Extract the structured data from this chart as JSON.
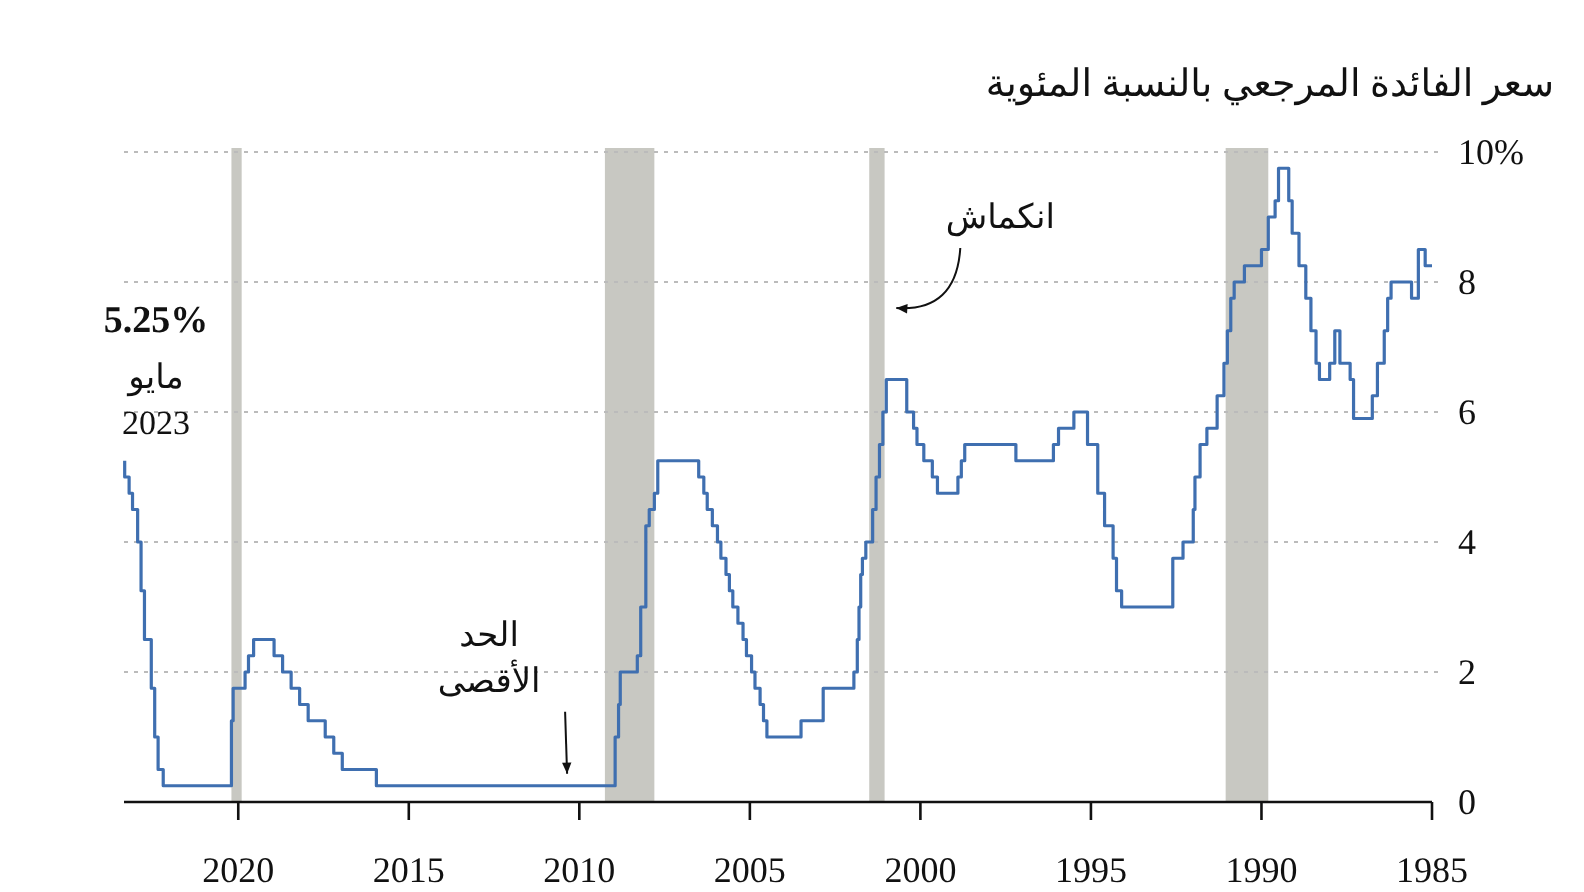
{
  "chart_data": {
    "type": "step",
    "subtitle": "سعر الفائدة المرجعي بالنسبة المئوية",
    "x": [
      1985.0,
      1985.2,
      1985.4,
      1985.6,
      1986.2,
      1986.3,
      1986.4,
      1986.6,
      1986.75,
      1987.3,
      1987.4,
      1987.7,
      1987.85,
      1988.0,
      1988.3,
      1988.4,
      1988.55,
      1988.7,
      1988.9,
      1989.1,
      1989.2,
      1989.5,
      1989.6,
      1989.8,
      1990.0,
      1990.5,
      1990.8,
      1990.9,
      1991.0,
      1991.1,
      1991.3,
      1991.6,
      1991.8,
      1991.95,
      1992.0,
      1992.3,
      1992.6,
      1994.1,
      1994.25,
      1994.35,
      1994.6,
      1994.8,
      1995.1,
      1995.5,
      1995.95,
      1996.1,
      1997.2,
      1998.7,
      1998.8,
      1998.9,
      1999.5,
      1999.65,
      1999.9,
      2000.1,
      2000.2,
      2000.4,
      2001.0,
      2001.1,
      2001.2,
      2001.3,
      2001.4,
      2001.6,
      2001.7,
      2001.75,
      2001.8,
      2001.85,
      2001.95,
      2002.85,
      2003.5,
      2004.5,
      2004.6,
      2004.7,
      2004.85,
      2004.95,
      2005.1,
      2005.2,
      2005.35,
      2005.5,
      2005.6,
      2005.7,
      2005.85,
      2005.95,
      2006.1,
      2006.25,
      2006.35,
      2006.5,
      2007.7,
      2007.8,
      2007.95,
      2008.05,
      2008.2,
      2008.3,
      2008.8,
      2008.85,
      2008.95,
      2015.95,
      2016.95,
      2017.2,
      2017.45,
      2017.95,
      2018.2,
      2018.45,
      2018.7,
      2018.95,
      2019.55,
      2019.7,
      2019.8,
      2020.15,
      2020.2,
      2022.2,
      2022.35,
      2022.45,
      2022.55,
      2022.75,
      2022.85,
      2022.95,
      2023.1,
      2023.2,
      2023.33
    ],
    "series": [
      {
        "color": "#3f6fb0",
        "values": [
          8.25,
          8.5,
          7.75,
          8.0,
          7.75,
          7.25,
          6.75,
          6.25,
          5.9,
          6.5,
          6.75,
          7.25,
          6.75,
          6.5,
          6.75,
          7.25,
          7.75,
          8.25,
          8.75,
          9.25,
          9.75,
          9.25,
          9.0,
          8.5,
          8.25,
          8.0,
          7.75,
          7.25,
          6.75,
          6.25,
          5.75,
          5.5,
          5.0,
          4.5,
          4.0,
          3.75,
          3.0,
          3.25,
          3.75,
          4.25,
          4.75,
          5.5,
          6.0,
          5.75,
          5.5,
          5.25,
          5.5,
          5.25,
          5.0,
          4.75,
          5.0,
          5.25,
          5.5,
          5.75,
          6.0,
          6.5,
          6.0,
          5.5,
          5.0,
          4.5,
          4.0,
          3.75,
          3.5,
          3.0,
          2.5,
          2.0,
          1.75,
          1.25,
          1.0,
          1.25,
          1.5,
          1.75,
          2.0,
          2.25,
          2.5,
          2.75,
          3.0,
          3.25,
          3.5,
          3.75,
          4.0,
          4.25,
          4.5,
          4.75,
          5.0,
          5.25,
          4.75,
          4.5,
          4.25,
          3.0,
          2.25,
          2.0,
          1.5,
          1.0,
          0.25,
          0.5,
          0.75,
          1.0,
          1.25,
          1.5,
          1.75,
          2.0,
          2.25,
          2.5,
          2.25,
          2.0,
          1.75,
          1.25,
          0.25,
          0.5,
          1.0,
          1.75,
          2.5,
          3.25,
          4.0,
          4.5,
          4.75,
          5.0,
          5.25
        ]
      }
    ],
    "xlim": [
      2023.35,
      1985
    ],
    "xticks": [
      2020,
      2015,
      2010,
      2005,
      2000,
      1995,
      1990,
      1985
    ],
    "ylim": [
      0,
      10
    ],
    "yticks": [
      0,
      2,
      4,
      6,
      8,
      {
        "value": 10,
        "label": "10%"
      }
    ],
    "grid": "y",
    "bands": [
      {
        "axis": "x",
        "from": 2019.9,
        "to": 2020.2,
        "color": "#c8c8c2"
      },
      {
        "axis": "x",
        "from": 2007.8,
        "to": 2009.25,
        "color": "#c8c8c2"
      },
      {
        "axis": "x",
        "from": 2001.05,
        "to": 2001.5,
        "color": "#c8c8c2"
      },
      {
        "axis": "x",
        "from": 1989.8,
        "to": 1991.05,
        "color": "#c8c8c2"
      }
    ],
    "annotations": [
      "5.25%",
      "مايو 2023",
      {
        "text": "الحد الأقصى",
        "x": 2010.3,
        "y": 0.25
      },
      {
        "text": "انكماش",
        "x": 2001.0,
        "y": 7.6
      }
    ]
  }
}
